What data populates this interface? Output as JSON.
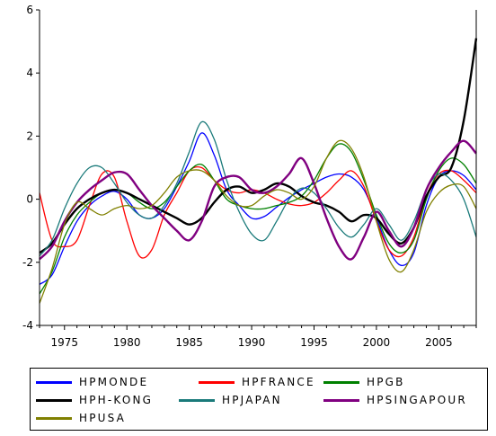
{
  "chart_data": {
    "type": "line",
    "title": "",
    "xlabel": "",
    "ylabel": "",
    "xlim": [
      1973,
      2008
    ],
    "ylim": [
      -4,
      6
    ],
    "x_ticks": [
      1975,
      1980,
      1985,
      1990,
      1995,
      2000,
      2005
    ],
    "y_ticks": [
      -4,
      -2,
      0,
      2,
      4,
      6
    ],
    "grid": false,
    "legend_position": "bottom",
    "series": [
      {
        "name": "HPMONDE",
        "color": "#0000FF",
        "width": 1.3,
        "x": [
          1973,
          1974,
          1975,
          1976,
          1977,
          1978,
          1979,
          1980,
          1981,
          1982,
          1983,
          1984,
          1985,
          1986,
          1987,
          1988,
          1989,
          1990,
          1991,
          1992,
          1993,
          1994,
          1995,
          1996,
          1997,
          1998,
          1999,
          2000,
          2001,
          2002,
          2003,
          2004,
          2005,
          2006,
          2007,
          2008
        ],
        "y": [
          -2.7,
          -2.4,
          -1.5,
          -0.7,
          -0.2,
          0.1,
          0.25,
          0.0,
          -0.5,
          -0.6,
          -0.3,
          0.4,
          1.2,
          2.1,
          1.4,
          0.3,
          -0.2,
          -0.6,
          -0.55,
          -0.25,
          0.05,
          0.3,
          0.5,
          0.7,
          0.8,
          0.7,
          0.3,
          -0.6,
          -1.6,
          -2.1,
          -1.7,
          -0.2,
          0.7,
          0.9,
          0.75,
          0.3
        ]
      },
      {
        "name": "HPFRANCE",
        "color": "#FF0000",
        "width": 1.3,
        "x": [
          1973,
          1974,
          1975,
          1976,
          1977,
          1978,
          1979,
          1980,
          1981,
          1982,
          1983,
          1984,
          1985,
          1986,
          1987,
          1988,
          1989,
          1990,
          1991,
          1992,
          1993,
          1994,
          1995,
          1996,
          1997,
          1998,
          1999,
          2000,
          2001,
          2002,
          2003,
          2004,
          2005,
          2006,
          2007,
          2008
        ],
        "y": [
          0.2,
          -1.3,
          -1.5,
          -1.3,
          -0.2,
          0.8,
          0.7,
          -0.7,
          -1.8,
          -1.6,
          -0.5,
          0.2,
          0.9,
          1.0,
          0.6,
          0.3,
          0.2,
          0.3,
          0.2,
          0.0,
          -0.15,
          -0.2,
          -0.1,
          0.2,
          0.6,
          0.9,
          0.4,
          -0.7,
          -1.6,
          -1.8,
          -1.2,
          0.1,
          0.8,
          0.9,
          0.6,
          0.2
        ]
      },
      {
        "name": "HPGB",
        "color": "#008000",
        "width": 1.3,
        "x": [
          1973,
          1974,
          1975,
          1976,
          1977,
          1978,
          1979,
          1980,
          1981,
          1982,
          1983,
          1984,
          1985,
          1986,
          1987,
          1988,
          1989,
          1990,
          1991,
          1992,
          1993,
          1994,
          1995,
          1996,
          1997,
          1998,
          1999,
          2000,
          2001,
          2002,
          2003,
          2004,
          2005,
          2006,
          2007,
          2008
        ],
        "y": [
          -3.0,
          -2.3,
          -1.2,
          -0.5,
          -0.1,
          0.2,
          0.3,
          0.2,
          -0.1,
          -0.3,
          -0.1,
          0.4,
          0.9,
          1.1,
          0.6,
          0.0,
          -0.2,
          -0.3,
          -0.3,
          -0.2,
          -0.1,
          0.1,
          0.6,
          1.3,
          1.75,
          1.5,
          0.6,
          -0.5,
          -1.4,
          -1.7,
          -1.3,
          0.0,
          0.9,
          1.3,
          1.1,
          0.5
        ]
      },
      {
        "name": "HPH-KONG",
        "color": "#000000",
        "width": 2.4,
        "x": [
          1973,
          1974,
          1975,
          1976,
          1977,
          1978,
          1979,
          1980,
          1981,
          1982,
          1983,
          1984,
          1985,
          1986,
          1987,
          1988,
          1989,
          1990,
          1991,
          1992,
          1993,
          1994,
          1995,
          1996,
          1997,
          1998,
          1999,
          2000,
          2001,
          2002,
          2003,
          2004,
          2005,
          2006,
          2007,
          2008
        ],
        "y": [
          -1.7,
          -1.4,
          -0.8,
          -0.3,
          0.0,
          0.2,
          0.3,
          0.2,
          0.0,
          -0.2,
          -0.4,
          -0.6,
          -0.8,
          -0.6,
          -0.1,
          0.3,
          0.4,
          0.2,
          0.3,
          0.5,
          0.4,
          0.1,
          -0.1,
          -0.2,
          -0.4,
          -0.7,
          -0.5,
          -0.6,
          -1.1,
          -1.4,
          -0.9,
          0.1,
          0.7,
          1.0,
          2.5,
          5.1
        ]
      },
      {
        "name": "HPJAPAN",
        "color": "#1A7A7A",
        "width": 1.3,
        "x": [
          1973,
          1974,
          1975,
          1976,
          1977,
          1978,
          1979,
          1980,
          1981,
          1982,
          1983,
          1984,
          1985,
          1986,
          1987,
          1988,
          1989,
          1990,
          1991,
          1992,
          1993,
          1994,
          1995,
          1996,
          1997,
          1998,
          1999,
          2000,
          2001,
          2002,
          2003,
          2004,
          2005,
          2006,
          2007,
          2008
        ],
        "y": [
          -1.8,
          -1.3,
          -0.3,
          0.5,
          1.0,
          1.0,
          0.5,
          -0.1,
          -0.5,
          -0.6,
          -0.2,
          0.5,
          1.5,
          2.45,
          1.9,
          0.6,
          -0.4,
          -1.1,
          -1.3,
          -0.7,
          0.0,
          0.35,
          0.2,
          -0.3,
          -0.9,
          -1.2,
          -0.8,
          -0.3,
          -0.8,
          -1.3,
          -0.7,
          0.3,
          0.8,
          0.6,
          0.0,
          -1.2
        ]
      },
      {
        "name": "HPSINGAPOUR",
        "color": "#800080",
        "width": 2.4,
        "x": [
          1973,
          1974,
          1975,
          1976,
          1977,
          1978,
          1979,
          1980,
          1981,
          1982,
          1983,
          1984,
          1985,
          1986,
          1987,
          1988,
          1989,
          1990,
          1991,
          1992,
          1993,
          1994,
          1995,
          1996,
          1997,
          1998,
          1999,
          2000,
          2001,
          2002,
          2003,
          2004,
          2005,
          2006,
          2007,
          2008
        ],
        "y": [
          -1.9,
          -1.5,
          -0.7,
          -0.1,
          0.3,
          0.6,
          0.85,
          0.8,
          0.3,
          -0.2,
          -0.6,
          -1.0,
          -1.3,
          -0.7,
          0.4,
          0.7,
          0.7,
          0.3,
          0.2,
          0.4,
          0.8,
          1.3,
          0.5,
          -0.6,
          -1.5,
          -1.9,
          -1.2,
          -0.4,
          -1.0,
          -1.5,
          -0.9,
          0.3,
          1.0,
          1.5,
          1.85,
          1.45
        ]
      },
      {
        "name": "HPUSA",
        "color": "#808000",
        "width": 1.3,
        "x": [
          1973,
          1974,
          1975,
          1976,
          1977,
          1978,
          1979,
          1980,
          1981,
          1982,
          1983,
          1984,
          1985,
          1986,
          1987,
          1988,
          1989,
          1990,
          1991,
          1992,
          1993,
          1994,
          1995,
          1996,
          1997,
          1998,
          1999,
          2000,
          2001,
          2002,
          2003,
          2004,
          2005,
          2006,
          2007,
          2008
        ],
        "y": [
          -3.3,
          -2.2,
          -0.8,
          -0.1,
          -0.3,
          -0.5,
          -0.3,
          -0.2,
          -0.3,
          -0.2,
          0.2,
          0.7,
          0.9,
          0.9,
          0.6,
          0.1,
          -0.2,
          -0.2,
          0.1,
          0.3,
          0.2,
          0.0,
          0.4,
          1.3,
          1.85,
          1.6,
          0.7,
          -0.7,
          -1.9,
          -2.3,
          -1.6,
          -0.4,
          0.2,
          0.45,
          0.4,
          -0.3
        ]
      }
    ]
  }
}
